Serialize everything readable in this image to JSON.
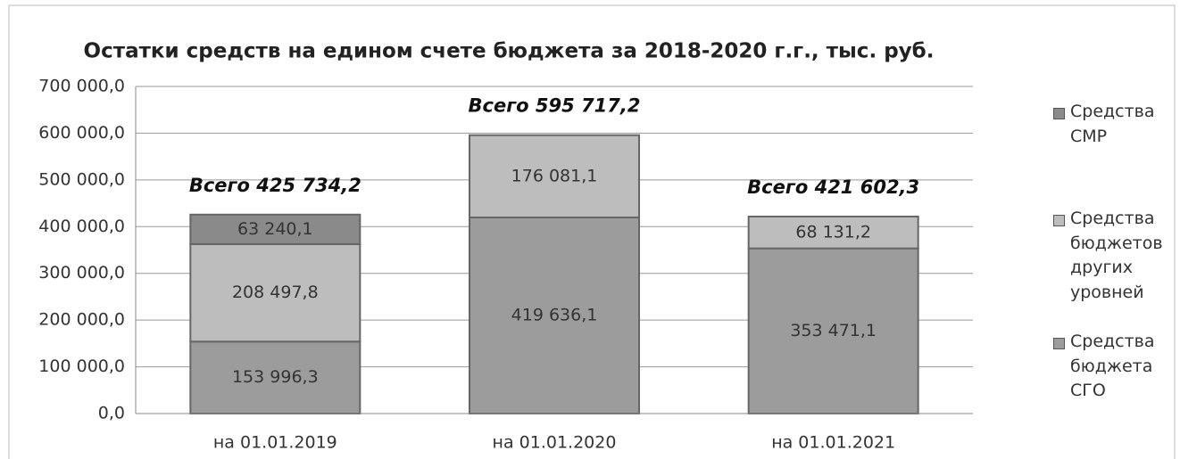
{
  "chart_data": {
    "type": "stacked_bar",
    "title": "Остатки средств на едином счете бюджета за 2018-2020 г.г., тыс. руб.",
    "categories": [
      "на 01.01.2019",
      "на 01.01.2020",
      "на 01.01.2021"
    ],
    "series": [
      {
        "name": "Средства СМР",
        "color": "#8a8a8a",
        "values": [
          63240.1,
          null,
          null
        ],
        "value_labels": [
          "63 240,1",
          null,
          null
        ]
      },
      {
        "name": "Средства бюджетов других уровней",
        "color": "#bdbdbd",
        "values": [
          208497.8,
          176081.1,
          68131.2
        ],
        "value_labels": [
          "208 497,8",
          "176 081,1",
          "68 131,2"
        ]
      },
      {
        "name": "Средства бюджета СГО",
        "color": "#9c9c9c",
        "values": [
          153996.3,
          419636.1,
          353471.1
        ],
        "value_labels": [
          "153 996,3",
          "419 636,1",
          "353 471,1"
        ]
      }
    ],
    "totals": [
      425734.2,
      595717.2,
      421602.3
    ],
    "total_labels": [
      "Всего 425 734,2",
      "Всего 595 717,2",
      "Всего 421 602,3"
    ],
    "ylim": [
      0,
      700000
    ],
    "yticks": [
      {
        "value": 0,
        "label": "0,0"
      },
      {
        "value": 100000,
        "label": "100 000,0"
      },
      {
        "value": 200000,
        "label": "200 000,0"
      },
      {
        "value": 300000,
        "label": "300 000,0"
      },
      {
        "value": 400000,
        "label": "400 000,0"
      },
      {
        "value": 500000,
        "label": "500 000,0"
      },
      {
        "value": 600000,
        "label": "600 000,0"
      },
      {
        "value": 700000,
        "label": "700 000,0"
      }
    ],
    "grid": true
  }
}
